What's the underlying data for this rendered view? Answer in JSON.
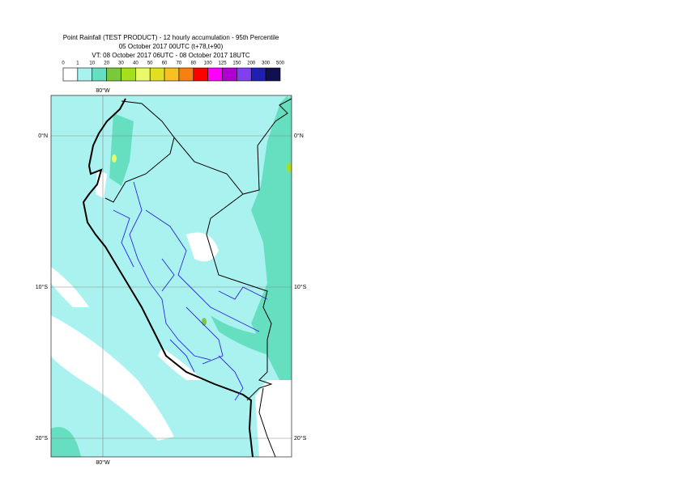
{
  "header": {
    "title": "Point Rainfall (TEST PRODUCT) - 12 hourly accumulation - 95th Percentile",
    "base_time": "05 October 2017 00UTC (t+78,t+90)",
    "valid_time": "VT: 08 October 2017 06UTC - 08 October 2017 18UTC"
  },
  "legend": {
    "bounds": [
      0,
      1,
      10,
      20,
      30,
      40,
      50,
      60,
      70,
      80,
      100,
      125,
      150,
      200,
      300,
      500
    ],
    "colors": [
      "#ffffff",
      "#aaf2f0",
      "#66dfc0",
      "#7cc83c",
      "#a6df1c",
      "#e8fa6a",
      "#e0e020",
      "#f8c020",
      "#f88010",
      "#ff0000",
      "#ff00ff",
      "#b000d0",
      "#8040f0",
      "#2020b0",
      "#101050"
    ]
  },
  "map": {
    "lon_labels": [
      "80°W"
    ],
    "lat_labels": [
      "0°N",
      "10°S",
      "20°S"
    ]
  }
}
